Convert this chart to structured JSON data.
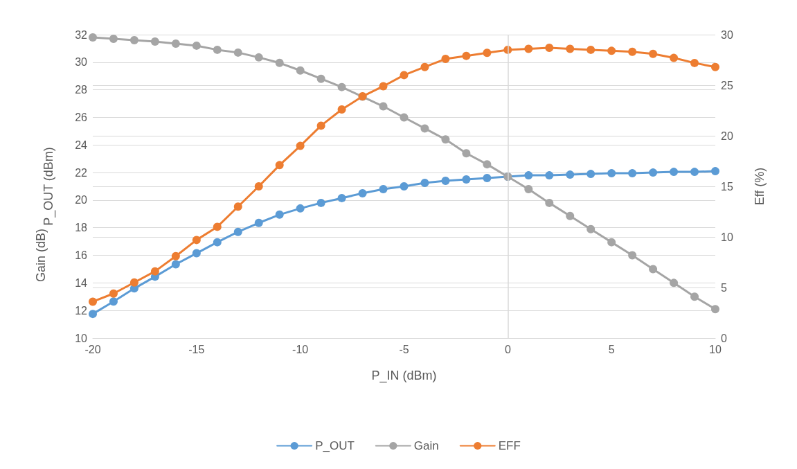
{
  "chart_data": {
    "type": "line",
    "xlabel": "P_IN (dBm)",
    "ylabel": "P_OUT (dBm)",
    "y2label": "Eff (%)",
    "annotations": [
      "Gain (dB)"
    ],
    "x": [
      -20,
      -19,
      -18,
      -17,
      -16,
      -15,
      -14,
      -13,
      -12,
      -11,
      -10,
      -9,
      -8,
      -7,
      -6,
      -5,
      -4,
      -3,
      -2,
      -1,
      0,
      1,
      2,
      3,
      4,
      5,
      6,
      7,
      8,
      9,
      10
    ],
    "series": [
      {
        "name": "P_OUT",
        "color": "#5b9bd5",
        "values": [
          11.75,
          12.65,
          13.6,
          14.45,
          15.35,
          16.15,
          16.95,
          17.7,
          18.35,
          18.95,
          19.4,
          19.8,
          20.15,
          20.5,
          20.8,
          21.0,
          21.25,
          21.4,
          21.5,
          21.6,
          21.7,
          21.8,
          21.8,
          21.85,
          21.9,
          21.95,
          21.95,
          22.0,
          22.05,
          22.05,
          22.1
        ]
      },
      {
        "name": "Gain",
        "color": "#a5a5a5",
        "values": [
          31.8,
          31.7,
          31.6,
          31.5,
          31.35,
          31.2,
          30.9,
          30.7,
          30.35,
          29.95,
          29.4,
          28.8,
          28.2,
          27.5,
          26.8,
          26.0,
          25.2,
          24.4,
          23.4,
          22.6,
          21.7,
          20.8,
          19.8,
          18.85,
          17.9,
          16.95,
          16.0,
          15.0,
          14.0,
          13.0,
          12.1
        ]
      },
      {
        "name": "EFF",
        "color": "#ed7d31",
        "axis": "y2",
        "values": [
          3.6,
          4.4,
          5.5,
          6.6,
          8.1,
          9.7,
          11.0,
          13.0,
          15.0,
          17.1,
          19.0,
          21.0,
          22.6,
          23.9,
          24.9,
          26.0,
          26.8,
          27.6,
          27.9,
          28.2,
          28.5,
          28.6,
          28.7,
          28.6,
          28.5,
          28.4,
          28.3,
          28.1,
          27.7,
          27.2,
          26.8
        ]
      }
    ],
    "xlim": [
      -20,
      10
    ],
    "xticks": [
      -20,
      -15,
      -10,
      -5,
      0,
      5,
      10
    ],
    "ylim": [
      10,
      32
    ],
    "yticks": [
      10,
      12,
      14,
      16,
      18,
      20,
      22,
      24,
      26,
      28,
      30,
      32
    ],
    "y2lim": [
      0,
      30
    ],
    "y2ticks": [
      0,
      5,
      10,
      15,
      20,
      25,
      30
    ],
    "ref_lines": [
      {
        "axis": "x",
        "value": 0,
        "color": "#d9d9d9"
      }
    ],
    "grid": "y",
    "legend": "bottom",
    "marker": "circle",
    "line_style": "solid"
  }
}
